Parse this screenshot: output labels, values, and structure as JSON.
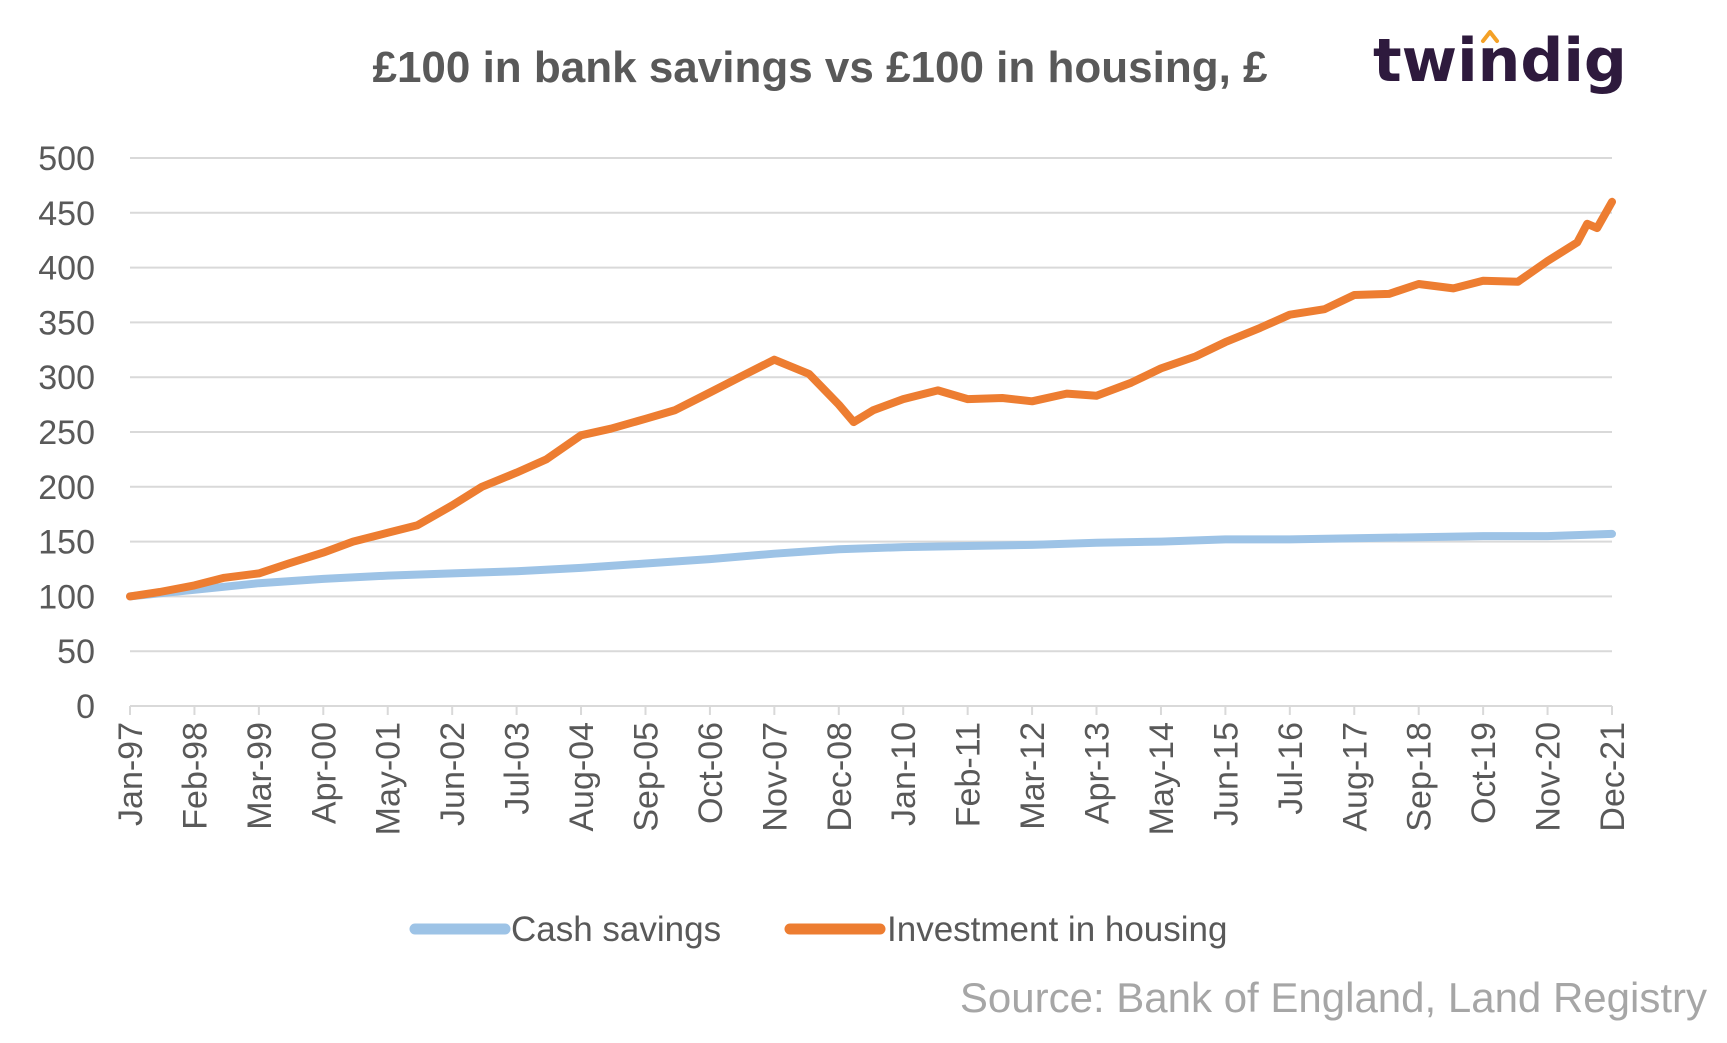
{
  "colors": {
    "cash": "#9dc3e6",
    "housing": "#ed7d31",
    "grid": "#d9d9d9",
    "text": "#595959",
    "source": "#a6a6a6",
    "brand": "#2e1a3d",
    "brand_accent": "#f4a127"
  },
  "brand": {
    "name": "twindig"
  },
  "source": "Source: Bank of England, Land Registry",
  "chart_data": {
    "type": "line",
    "title": "£100 in bank savings  vs  £100 in housing, £",
    "xlabel": "",
    "ylabel": "",
    "ylim": [
      0,
      500
    ],
    "y_ticks": [
      "0",
      "50",
      "100",
      "150",
      "200",
      "250",
      "300",
      "350",
      "400",
      "450",
      "500"
    ],
    "x_tick_labels": [
      "Jan-97",
      "Feb-98",
      "Mar-99",
      "Apr-00",
      "May-01",
      "Jun-02",
      "Jul-03",
      "Aug-04",
      "Sep-05",
      "Oct-06",
      "Nov-07",
      "Dec-08",
      "Jan-10",
      "Feb-11",
      "Mar-12",
      "Apr-13",
      "May-14",
      "Jun-15",
      "Jul-16",
      "Aug-17",
      "Sep-18",
      "Oct-19",
      "Nov-20",
      "Dec-21"
    ],
    "grid": true,
    "legend_position": "bottom",
    "series": [
      {
        "name": "Cash savings",
        "color": "#9dc3e6",
        "points": [
          [
            "Jan-97",
            100
          ],
          [
            "Feb-98",
            106
          ],
          [
            "Mar-99",
            112
          ],
          [
            "Apr-00",
            116
          ],
          [
            "May-01",
            119
          ],
          [
            "Jun-02",
            121
          ],
          [
            "Jul-03",
            123
          ],
          [
            "Aug-04",
            126
          ],
          [
            "Sep-05",
            130
          ],
          [
            "Oct-06",
            134
          ],
          [
            "Nov-07",
            139
          ],
          [
            "Dec-08",
            143
          ],
          [
            "Jan-10",
            145
          ],
          [
            "Feb-11",
            146
          ],
          [
            "Mar-12",
            147
          ],
          [
            "Apr-13",
            149
          ],
          [
            "May-14",
            150
          ],
          [
            "Jun-15",
            152
          ],
          [
            "Jul-16",
            152
          ],
          [
            "Aug-17",
            153
          ],
          [
            "Sep-18",
            154
          ],
          [
            "Oct-19",
            155
          ],
          [
            "Nov-20",
            155
          ],
          [
            "Dec-21",
            157
          ]
        ]
      },
      {
        "name": "Investment in housing",
        "color": "#ed7d31",
        "points": [
          [
            "Jan-97",
            100
          ],
          [
            "Jul-97",
            104
          ],
          [
            "Feb-98",
            110
          ],
          [
            "Aug-98",
            117
          ],
          [
            "Mar-99",
            121
          ],
          [
            "Sep-99",
            130
          ],
          [
            "Apr-00",
            140
          ],
          [
            "Oct-00",
            150
          ],
          [
            "May-01",
            158
          ],
          [
            "Nov-01",
            165
          ],
          [
            "Jun-02",
            183
          ],
          [
            "Dec-02",
            200
          ],
          [
            "Jul-03",
            213
          ],
          [
            "Jan-04",
            225
          ],
          [
            "Aug-04",
            247
          ],
          [
            "Feb-05",
            253
          ],
          [
            "Sep-05",
            262
          ],
          [
            "Mar-06",
            270
          ],
          [
            "Oct-06",
            286
          ],
          [
            "Apr-07",
            300
          ],
          [
            "Nov-07",
            316
          ],
          [
            "Jun-08",
            303
          ],
          [
            "Dec-08",
            275
          ],
          [
            "Mar-09",
            259
          ],
          [
            "Jul-09",
            270
          ],
          [
            "Jan-10",
            280
          ],
          [
            "Aug-10",
            288
          ],
          [
            "Feb-11",
            280
          ],
          [
            "Sep-11",
            281
          ],
          [
            "Mar-12",
            278
          ],
          [
            "Oct-12",
            285
          ],
          [
            "Apr-13",
            283
          ],
          [
            "Nov-13",
            295
          ],
          [
            "May-14",
            308
          ],
          [
            "Dec-14",
            319
          ],
          [
            "Jun-15",
            332
          ],
          [
            "Jan-16",
            345
          ],
          [
            "Jul-16",
            357
          ],
          [
            "Feb-17",
            362
          ],
          [
            "Aug-17",
            375
          ],
          [
            "Mar-18",
            376
          ],
          [
            "Sep-18",
            385
          ],
          [
            "Apr-19",
            381
          ],
          [
            "Oct-19",
            388
          ],
          [
            "May-20",
            387
          ],
          [
            "Nov-20",
            406
          ],
          [
            "May-21",
            423
          ],
          [
            "Jul-21",
            440
          ],
          [
            "Sep-21",
            436
          ],
          [
            "Dec-21",
            460
          ]
        ]
      }
    ]
  }
}
